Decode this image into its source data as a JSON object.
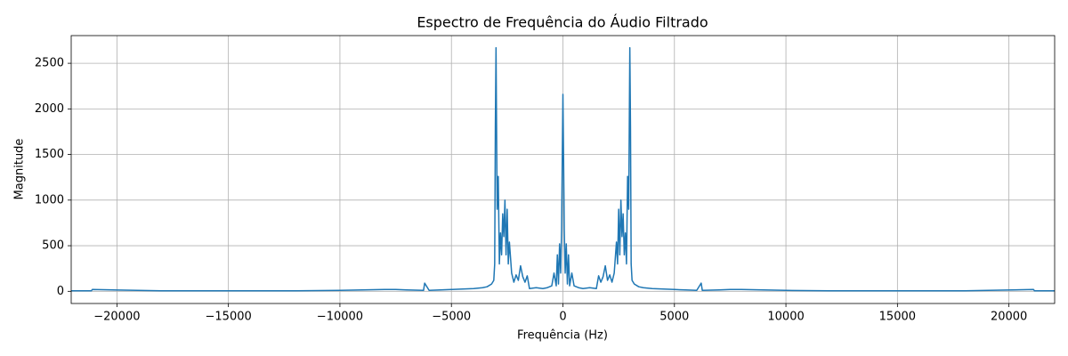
{
  "chart_data": {
    "type": "line",
    "title": "Espectro de Frequência do Áudio Filtrado",
    "xlabel": "Frequência (Hz)",
    "ylabel": "Magnitude",
    "x": [
      -22050,
      -21150,
      -21100,
      -18000,
      -15000,
      -12000,
      -10000,
      -9000,
      -8000,
      -7500,
      -7000,
      -6250,
      -6200,
      -6000,
      -5500,
      -5000,
      -4500,
      -4000,
      -3600,
      -3400,
      -3200,
      -3100,
      -3060,
      -3030,
      -3000,
      -2950,
      -2900,
      -2850,
      -2800,
      -2750,
      -2700,
      -2650,
      -2600,
      -2550,
      -2500,
      -2450,
      -2400,
      -2300,
      -2200,
      -2100,
      -2000,
      -1900,
      -1800,
      -1700,
      -1600,
      -1500,
      -1200,
      -900,
      -700,
      -500,
      -400,
      -300,
      -250,
      -200,
      -150,
      -100,
      -60,
      -30,
      0,
      30,
      60,
      100,
      150,
      200,
      250,
      300,
      400,
      500,
      700,
      900,
      1200,
      1500,
      1600,
      1700,
      1800,
      1900,
      2000,
      2100,
      2200,
      2300,
      2400,
      2450,
      2500,
      2550,
      2600,
      2650,
      2700,
      2750,
      2800,
      2850,
      2900,
      2950,
      3000,
      3030,
      3060,
      3100,
      3200,
      3400,
      3600,
      4000,
      4500,
      5000,
      5500,
      6000,
      6200,
      6250,
      7000,
      7500,
      8000,
      9000,
      10000,
      12000,
      15000,
      18000,
      21100,
      21150,
      22050
    ],
    "series": [
      {
        "name": "Magnitude",
        "color": "#1f77b4",
        "values": [
          5,
          5,
          20,
          5,
          5,
          5,
          10,
          15,
          20,
          20,
          15,
          10,
          90,
          10,
          15,
          20,
          25,
          30,
          40,
          50,
          80,
          120,
          300,
          1800,
          2670,
          900,
          1260,
          300,
          640,
          400,
          850,
          600,
          1000,
          400,
          900,
          300,
          540,
          200,
          100,
          180,
          120,
          280,
          160,
          100,
          170,
          30,
          40,
          30,
          40,
          60,
          200,
          60,
          400,
          80,
          520,
          200,
          680,
          1440,
          2160,
          1440,
          680,
          200,
          520,
          80,
          400,
          60,
          200,
          60,
          40,
          30,
          40,
          30,
          170,
          100,
          160,
          280,
          120,
          180,
          100,
          200,
          540,
          300,
          900,
          400,
          1000,
          600,
          850,
          400,
          640,
          300,
          1260,
          900,
          2670,
          1800,
          300,
          120,
          80,
          50,
          40,
          30,
          25,
          20,
          15,
          10,
          90,
          10,
          15,
          20,
          20,
          15,
          10,
          5,
          5,
          5,
          20,
          5,
          5
        ]
      }
    ],
    "xlim": [
      -22050,
      22050
    ],
    "ylim": [
      -133.5,
      2803.5
    ],
    "xticks": [
      {
        "value": -20000,
        "label": "−20000"
      },
      {
        "value": -15000,
        "label": "−15000"
      },
      {
        "value": -10000,
        "label": "−10000"
      },
      {
        "value": -5000,
        "label": "−5000"
      },
      0,
      5000,
      10000,
      15000,
      20000
    ],
    "yticks": [
      0,
      500,
      1000,
      1500,
      2000,
      2500
    ],
    "grid": true
  }
}
